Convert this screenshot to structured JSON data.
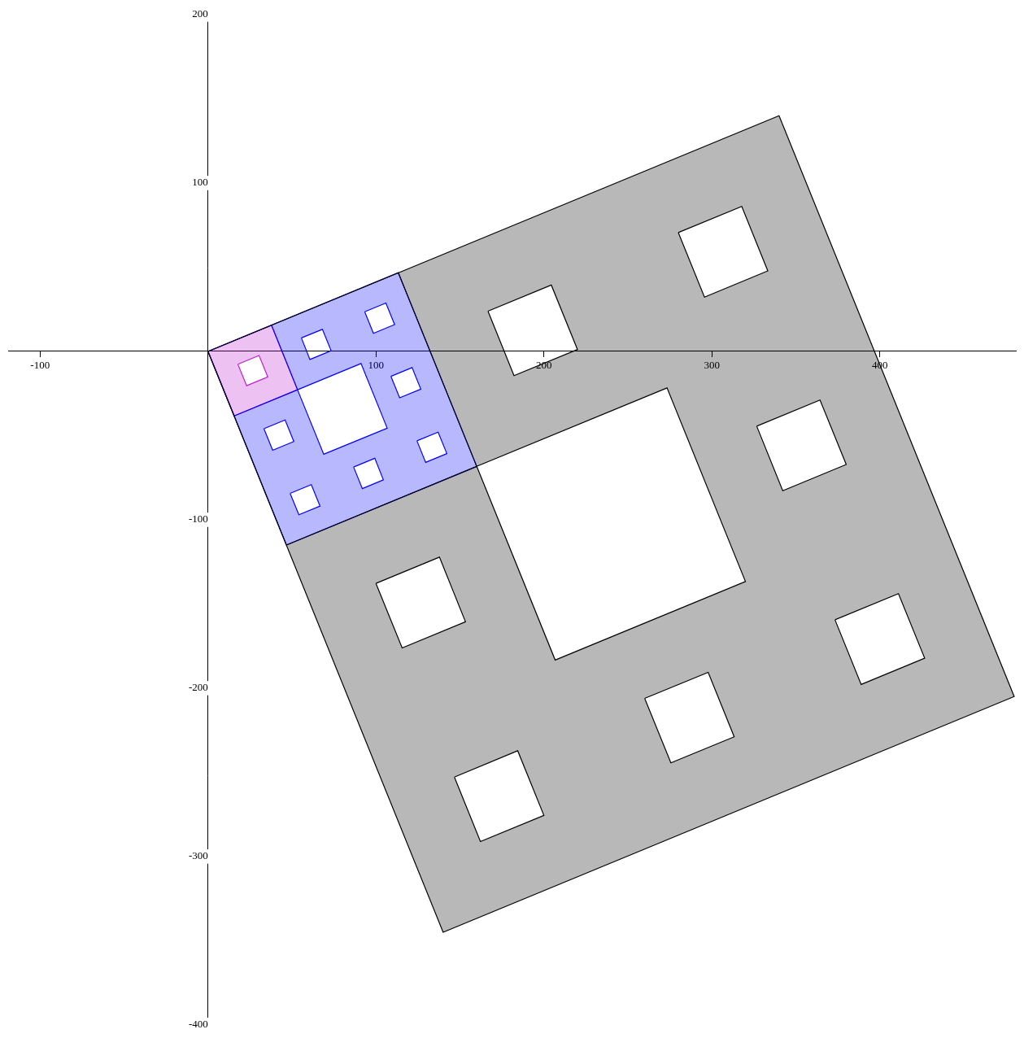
{
  "chart_data": {
    "type": "scatter",
    "line_style": "solid",
    "marker": "none",
    "grid": false,
    "xlim": [
      -119,
      481
    ],
    "ylim": [
      -402,
      200
    ],
    "xticks": [
      -100,
      100,
      200,
      300,
      400
    ],
    "yticks": [
      -400,
      -300,
      -200,
      -100,
      100,
      200
    ],
    "series": [
      {
        "color": "#000000",
        "x": [
          0,
          340,
          480,
          140,
          0,
          null,
          0,
          113.3,
          160,
          46.7,
          0,
          null,
          160,
          273.3,
          320,
          206.7,
          160,
          null,
          166.7,
          204.4,
          220.0,
          182.2,
          166.7,
          null,
          280.0,
          317.8,
          333.3,
          295.6,
          280.0,
          null,
          100.0,
          137.8,
          153.3,
          115.6,
          100.0,
          null,
          326.7,
          364.4,
          380.0,
          342.2,
          326.7,
          null,
          146.7,
          184.4,
          200.0,
          162.2,
          146.7,
          null,
          260.0,
          297.8,
          313.3,
          275.6,
          260.0,
          null,
          373.3,
          411.1,
          426.7,
          388.9,
          373.3
        ],
        "y": [
          0,
          140,
          -205,
          -345,
          0,
          null,
          0,
          46.7,
          -68.3,
          -115,
          0,
          null,
          -68.3,
          -21.7,
          -136.7,
          -183.3,
          -68.3,
          null,
          23.9,
          39.4,
          1.1,
          -14.4,
          23.9,
          null,
          70.6,
          86.1,
          47.8,
          32.2,
          70.6,
          null,
          -137.8,
          -122.2,
          -160.6,
          -176.1,
          -137.8,
          null,
          -44.4,
          -28.9,
          -67.2,
          -82.8,
          -44.4,
          null,
          -252.8,
          -237.2,
          -275.6,
          -291.1,
          -252.8,
          null,
          -206.1,
          -190.6,
          -228.9,
          -244.4,
          -206.1,
          null,
          -159.4,
          -143.9,
          -182.2,
          -197.8,
          -159.4
        ]
      },
      {
        "color": "#0000ff",
        "x": [
          0,
          113.3,
          160,
          46.7,
          0,
          null,
          0,
          37.8,
          53.3,
          15.6,
          0,
          null,
          53.3,
          91.1,
          106.7,
          68.9,
          53.3,
          null,
          55.6,
          68.1,
          73.3,
          60.7,
          55.6,
          null,
          93.3,
          105.9,
          111.1,
          98.5,
          93.3,
          null,
          33.3,
          45.9,
          51.1,
          38.5,
          33.3,
          null,
          108.9,
          121.5,
          126.7,
          114.1,
          108.9,
          null,
          48.9,
          61.5,
          66.7,
          54.1,
          48.9,
          null,
          86.7,
          99.3,
          104.4,
          91.9,
          86.7,
          null,
          124.4,
          137.0,
          142.2,
          129.6,
          124.4
        ],
        "y": [
          0,
          46.7,
          -68.3,
          -115,
          0,
          null,
          0,
          15.6,
          -22.8,
          -38.3,
          0,
          null,
          -22.8,
          -7.2,
          -45.6,
          -61.1,
          -22.8,
          null,
          8.0,
          13.1,
          0.4,
          -4.8,
          8.0,
          null,
          23.5,
          28.7,
          15.9,
          10.7,
          23.5,
          null,
          -45.9,
          -40.7,
          -53.5,
          -58.7,
          -45.9,
          null,
          -14.8,
          -9.6,
          -22.4,
          -27.6,
          -14.8,
          null,
          -84.3,
          -79.1,
          -91.9,
          -97.0,
          -84.3,
          null,
          -68.7,
          -63.5,
          -76.3,
          -81.5,
          -68.7,
          null,
          -53.1,
          -48.0,
          -60.7,
          -65.9,
          -53.1
        ]
      },
      {
        "color": "#c020d0",
        "x": [
          0,
          37.8,
          53.3,
          15.6,
          0,
          null,
          17.8,
          30.4,
          35.6,
          23.0,
          17.8
        ],
        "y": [
          0,
          15.6,
          -22.8,
          -38.3,
          0,
          null,
          -7.6,
          -2.4,
          -15.2,
          -20.4,
          -7.6
        ]
      }
    ]
  }
}
